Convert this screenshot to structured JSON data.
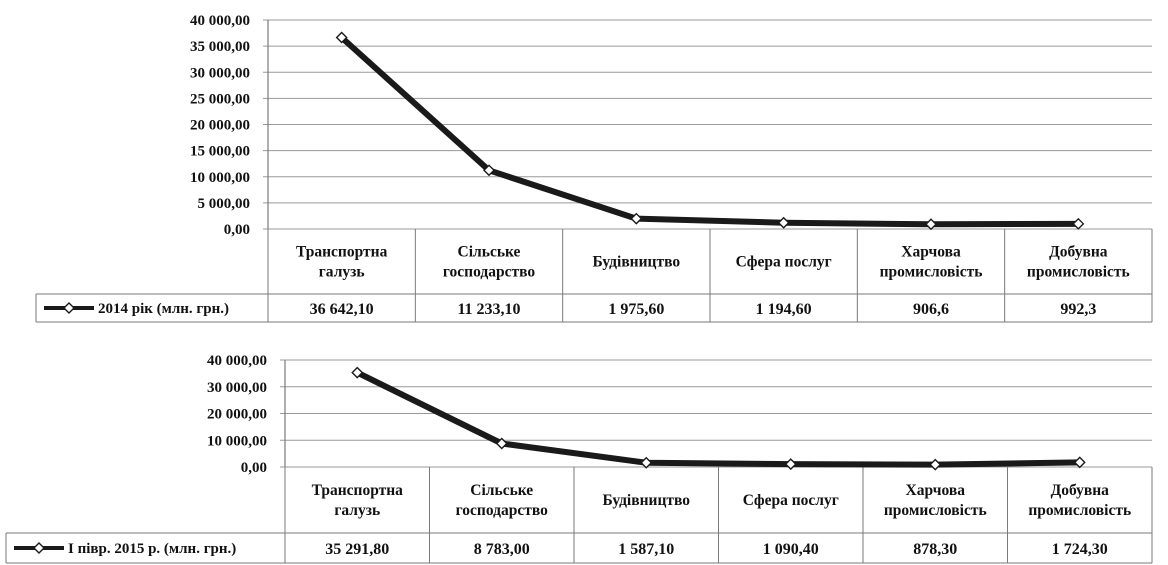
{
  "colors": {
    "line": "#1a1a1a",
    "grid": "#9a9a9a",
    "border": "#7a7a7a",
    "marker_fill": "#ffffff"
  },
  "chart_data": [
    {
      "type": "line",
      "categories": [
        [
          "Транспортна",
          "галузь"
        ],
        [
          "Сільське",
          "господарство"
        ],
        [
          "Будівництво"
        ],
        [
          "Сфера послуг"
        ],
        [
          "Харчова",
          "промисловість"
        ],
        [
          "Добувна",
          "промисловість"
        ]
      ],
      "series": [
        {
          "name": "2014 рік (млн. грн.)",
          "values": [
            36642.1,
            11233.1,
            1975.6,
            1194.6,
            906.6,
            992.3
          ]
        }
      ],
      "table_values": [
        "36 642,10",
        "11 233,10",
        "1 975,60",
        "1 194,60",
        "906,6",
        "992,3"
      ],
      "ylim": [
        0,
        40000
      ],
      "yticks": [
        0,
        5000,
        10000,
        15000,
        20000,
        25000,
        30000,
        35000,
        40000
      ],
      "ytick_labels": [
        "0,00",
        "5 000,00",
        "10 000,00",
        "15 000,00",
        "20 000,00",
        "25 000,00",
        "30 000,00",
        "35 000,00",
        "40 000,00"
      ],
      "grid": true,
      "data_table": true
    },
    {
      "type": "line",
      "categories": [
        [
          "Транспортна",
          "галузь"
        ],
        [
          "Сільське",
          "господарство"
        ],
        [
          "Будівництво"
        ],
        [
          "Сфера послуг"
        ],
        [
          "Харчова",
          "промисловість"
        ],
        [
          "Добувна",
          "промисловість"
        ]
      ],
      "series": [
        {
          "name": "І півр. 2015 р. (млн. грн.)",
          "values": [
            35291.8,
            8783.0,
            1587.1,
            1090.4,
            878.3,
            1724.3
          ]
        }
      ],
      "table_values": [
        "35 291,80",
        "8 783,00",
        "1 587,10",
        "1 090,40",
        "878,30",
        "1 724,30"
      ],
      "ylim": [
        0,
        40000
      ],
      "yticks": [
        0,
        10000,
        20000,
        30000,
        40000
      ],
      "ytick_labels": [
        "0,00",
        "10 000,00",
        "20 000,00",
        "30 000,00",
        "40 000,00"
      ],
      "grid": true,
      "data_table": true
    }
  ]
}
